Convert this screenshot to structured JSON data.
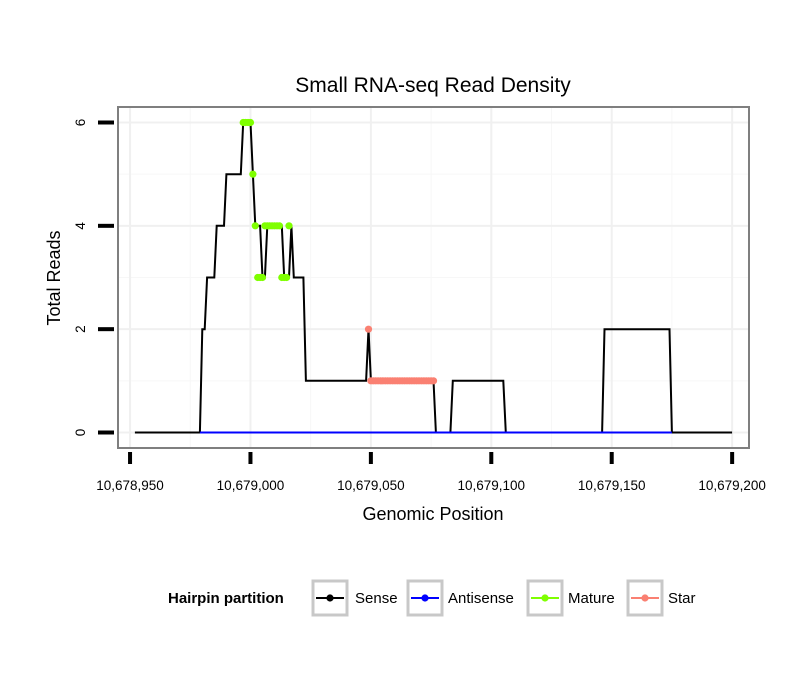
{
  "chart_data": {
    "type": "line",
    "title": "Small RNA-seq Read Density",
    "xlabel": "Genomic Position",
    "ylabel": "Total Reads",
    "xlim": [
      10678945,
      10679207
    ],
    "ylim": [
      -0.3,
      6.3
    ],
    "x_ticks": [
      10678950,
      10679000,
      10679050,
      10679100,
      10679150,
      10679200
    ],
    "x_tick_labels": [
      "10,678,950",
      "10,679,000",
      "10,679,050",
      "10,679,100",
      "10,679,150",
      "10,679,200"
    ],
    "y_ticks": [
      0,
      2,
      4,
      6
    ],
    "y_tick_labels": [
      "0",
      "2",
      "4",
      "6"
    ],
    "grid": true,
    "legend": {
      "title": "Hairpin partition",
      "position": "bottom",
      "entries": [
        "Sense",
        "Antisense",
        "Mature",
        "Star"
      ]
    },
    "series": [
      {
        "name": "Sense",
        "color": "#000000",
        "style": "line",
        "points": [
          [
            10678952,
            0
          ],
          [
            10678979,
            0
          ],
          [
            10678980,
            2
          ],
          [
            10678981,
            2
          ],
          [
            10678982,
            3
          ],
          [
            10678985,
            3
          ],
          [
            10678986,
            4
          ],
          [
            10678989,
            4
          ],
          [
            10678990,
            5
          ],
          [
            10678996,
            5
          ],
          [
            10678997,
            6
          ],
          [
            10679000,
            6
          ],
          [
            10679001,
            5
          ],
          [
            10679002,
            4
          ],
          [
            10679004,
            4
          ],
          [
            10679005,
            3
          ],
          [
            10679006,
            3
          ],
          [
            10679007,
            4
          ],
          [
            10679013,
            4
          ],
          [
            10679014,
            3
          ],
          [
            10679016,
            3
          ],
          [
            10679017,
            4
          ],
          [
            10679018,
            3
          ],
          [
            10679022,
            3
          ],
          [
            10679023,
            1
          ],
          [
            10679048,
            1
          ],
          [
            10679049,
            2
          ],
          [
            10679050,
            1
          ],
          [
            10679076,
            1
          ],
          [
            10679077,
            0
          ],
          [
            10679083,
            0
          ],
          [
            10679084,
            1
          ],
          [
            10679105,
            1
          ],
          [
            10679106,
            0
          ],
          [
            10679146,
            0
          ],
          [
            10679147,
            2
          ],
          [
            10679174,
            2
          ],
          [
            10679175,
            0
          ],
          [
            10679200,
            0
          ]
        ]
      },
      {
        "name": "Antisense",
        "color": "#0000ff",
        "style": "line",
        "points": [
          [
            10678979,
            0
          ],
          [
            10679175,
            0
          ]
        ]
      },
      {
        "name": "Mature",
        "color": "#7fff00",
        "style": "points",
        "points": [
          [
            10678997,
            6
          ],
          [
            10678998,
            6
          ],
          [
            10678999,
            6
          ],
          [
            10679000,
            6
          ],
          [
            10679001,
            5
          ],
          [
            10679002,
            4
          ],
          [
            10679003,
            3
          ],
          [
            10679004,
            3
          ],
          [
            10679005,
            3
          ],
          [
            10679006,
            4
          ],
          [
            10679007,
            4
          ],
          [
            10679008,
            4
          ],
          [
            10679009,
            4
          ],
          [
            10679010,
            4
          ],
          [
            10679011,
            4
          ],
          [
            10679012,
            4
          ],
          [
            10679013,
            3
          ],
          [
            10679014,
            3
          ],
          [
            10679015,
            3
          ],
          [
            10679016,
            4
          ]
        ]
      },
      {
        "name": "Star",
        "color": "#fa8072",
        "style": "points",
        "points": [
          [
            10679049,
            2
          ],
          [
            10679050,
            1
          ],
          [
            10679051,
            1
          ],
          [
            10679052,
            1
          ],
          [
            10679053,
            1
          ],
          [
            10679054,
            1
          ],
          [
            10679055,
            1
          ],
          [
            10679056,
            1
          ],
          [
            10679057,
            1
          ],
          [
            10679058,
            1
          ],
          [
            10679059,
            1
          ],
          [
            10679060,
            1
          ],
          [
            10679061,
            1
          ],
          [
            10679062,
            1
          ],
          [
            10679063,
            1
          ],
          [
            10679064,
            1
          ],
          [
            10679065,
            1
          ],
          [
            10679066,
            1
          ],
          [
            10679067,
            1
          ],
          [
            10679068,
            1
          ],
          [
            10679069,
            1
          ],
          [
            10679070,
            1
          ],
          [
            10679071,
            1
          ],
          [
            10679072,
            1
          ],
          [
            10679073,
            1
          ],
          [
            10679074,
            1
          ],
          [
            10679075,
            1
          ],
          [
            10679076,
            1
          ]
        ]
      }
    ]
  }
}
